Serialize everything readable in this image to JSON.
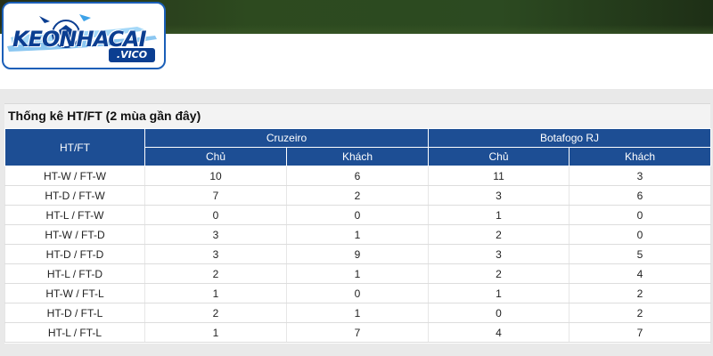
{
  "brand": {
    "logo_text": "KEONHACAI",
    "logo_sub": ".VICO",
    "banner_color": "#2d4a1f",
    "logo_color": "#0b3e91"
  },
  "stats": {
    "title": "Thống kê HT/FT (2 mùa gần đây)",
    "header_color": "#1d4e94",
    "col_htft": "HT/FT",
    "teams": [
      {
        "name": "Cruzeiro",
        "sub": [
          "Chủ",
          "Khách"
        ]
      },
      {
        "name": "Botafogo RJ",
        "sub": [
          "Chủ",
          "Khách"
        ]
      }
    ],
    "rows": [
      {
        "label": "HT-W / FT-W",
        "values": [
          "10",
          "6",
          "11",
          "3"
        ]
      },
      {
        "label": "HT-D / FT-W",
        "values": [
          "7",
          "2",
          "3",
          "6"
        ]
      },
      {
        "label": "HT-L / FT-W",
        "values": [
          "0",
          "0",
          "1",
          "0"
        ]
      },
      {
        "label": "HT-W / FT-D",
        "values": [
          "3",
          "1",
          "2",
          "0"
        ]
      },
      {
        "label": "HT-D / FT-D",
        "values": [
          "3",
          "9",
          "3",
          "5"
        ]
      },
      {
        "label": "HT-L / FT-D",
        "values": [
          "2",
          "1",
          "2",
          "4"
        ]
      },
      {
        "label": "HT-W / FT-L",
        "values": [
          "1",
          "0",
          "1",
          "2"
        ]
      },
      {
        "label": "HT-D / FT-L",
        "values": [
          "2",
          "1",
          "0",
          "2"
        ]
      },
      {
        "label": "HT-L / FT-L",
        "values": [
          "1",
          "7",
          "4",
          "7"
        ]
      }
    ]
  }
}
